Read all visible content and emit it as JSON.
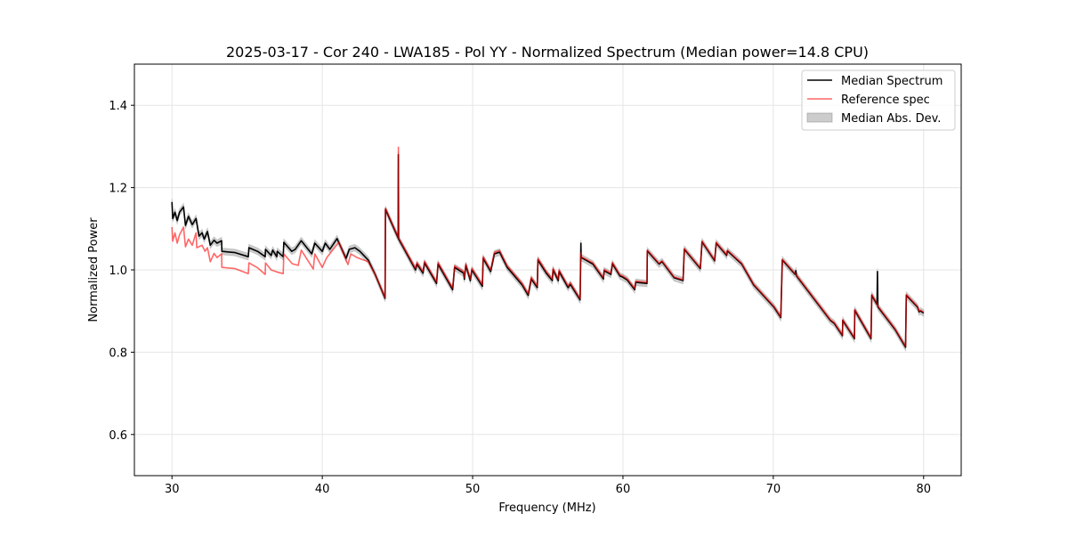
{
  "chart_data": {
    "type": "line",
    "title": "2025-03-17 - Cor 240 - LWA185 - Pol YY - Normalized Spectrum (Median power=14.8 CPU)",
    "xlabel": "Frequency (MHz)",
    "ylabel": "Normalized Power",
    "xlim": [
      27.5,
      82.5
    ],
    "ylim": [
      0.5,
      1.5
    ],
    "x_ticks": [
      30,
      40,
      50,
      60,
      70,
      80
    ],
    "y_ticks": [
      0.6,
      0.8,
      1.0,
      1.2,
      1.4
    ],
    "y_tick_labels": [
      "0.6",
      "0.8",
      "1.0",
      "1.2",
      "1.4"
    ],
    "grid": true,
    "legend_position": "top-right",
    "legend": [
      "Median Spectrum",
      "Reference spec",
      "Median Abs. Dev."
    ],
    "colors": {
      "median": "#000000",
      "reference": "#ff0000",
      "mad": "#999999"
    },
    "mad_halfwidth": 0.008,
    "series": [
      {
        "name": "Median Spectrum",
        "points": [
          [
            30.0,
            1.165
          ],
          [
            30.05,
            1.125
          ],
          [
            30.2,
            1.14
          ],
          [
            30.35,
            1.12
          ],
          [
            30.5,
            1.14
          ],
          [
            30.77,
            1.153
          ],
          [
            30.9,
            1.108
          ],
          [
            31.1,
            1.13
          ],
          [
            31.35,
            1.11
          ],
          [
            31.6,
            1.125
          ],
          [
            31.8,
            1.082
          ],
          [
            32.0,
            1.09
          ],
          [
            32.15,
            1.075
          ],
          [
            32.36,
            1.093
          ],
          [
            32.55,
            1.06
          ],
          [
            32.8,
            1.072
          ],
          [
            33.0,
            1.065
          ],
          [
            33.3,
            1.071
          ],
          [
            33.32,
            1.045
          ],
          [
            34.2,
            1.042
          ],
          [
            35.08,
            1.032
          ],
          [
            35.12,
            1.054
          ],
          [
            35.7,
            1.045
          ],
          [
            36.2,
            1.032
          ],
          [
            36.22,
            1.05
          ],
          [
            36.6,
            1.035
          ],
          [
            36.7,
            1.048
          ],
          [
            36.97,
            1.032
          ],
          [
            37.0,
            1.045
          ],
          [
            37.4,
            1.032
          ],
          [
            37.44,
            1.067
          ],
          [
            37.97,
            1.045
          ],
          [
            38.2,
            1.05
          ],
          [
            38.6,
            1.071
          ],
          [
            39.3,
            1.039
          ],
          [
            39.5,
            1.065
          ],
          [
            40.0,
            1.045
          ],
          [
            40.2,
            1.065
          ],
          [
            40.5,
            1.05
          ],
          [
            40.98,
            1.076
          ],
          [
            41.58,
            1.028
          ],
          [
            41.8,
            1.05
          ],
          [
            42.17,
            1.054
          ],
          [
            42.5,
            1.045
          ],
          [
            43.05,
            1.024
          ],
          [
            43.5,
            0.99
          ],
          [
            44.18,
            0.931
          ],
          [
            44.2,
            1.147
          ],
          [
            45.04,
            1.078
          ],
          [
            45.06,
            1.28
          ],
          [
            45.08,
            1.075
          ],
          [
            45.4,
            1.054
          ],
          [
            46.2,
            1.0
          ],
          [
            46.3,
            1.014
          ],
          [
            46.7,
            0.992
          ],
          [
            46.8,
            1.017
          ],
          [
            47.6,
            0.967
          ],
          [
            47.7,
            1.014
          ],
          [
            48.67,
            0.952
          ],
          [
            48.8,
            1.006
          ],
          [
            49.4,
            0.992
          ],
          [
            49.45,
            0.977
          ],
          [
            49.55,
            1.011
          ],
          [
            49.85,
            0.974
          ],
          [
            49.95,
            1.0
          ],
          [
            50.65,
            0.96
          ],
          [
            50.7,
            1.028
          ],
          [
            51.2,
            0.996
          ],
          [
            51.45,
            1.039
          ],
          [
            51.8,
            1.043
          ],
          [
            52.3,
            1.006
          ],
          [
            53.3,
            0.963
          ],
          [
            53.7,
            0.938
          ],
          [
            53.9,
            0.978
          ],
          [
            54.3,
            0.957
          ],
          [
            54.34,
            1.024
          ],
          [
            54.9,
            0.992
          ],
          [
            55.3,
            0.974
          ],
          [
            55.35,
            1.0
          ],
          [
            55.7,
            0.974
          ],
          [
            55.75,
            0.996
          ],
          [
            56.35,
            0.957
          ],
          [
            56.5,
            0.965
          ],
          [
            57.15,
            0.927
          ],
          [
            57.2,
            1.065
          ],
          [
            57.22,
            1.03
          ],
          [
            58.0,
            1.014
          ],
          [
            58.7,
            0.978
          ],
          [
            58.75,
            0.998
          ],
          [
            59.2,
            0.989
          ],
          [
            59.3,
            1.015
          ],
          [
            59.8,
            0.985
          ],
          [
            60.0,
            0.982
          ],
          [
            60.3,
            0.975
          ],
          [
            60.78,
            0.952
          ],
          [
            60.85,
            0.97
          ],
          [
            61.6,
            0.967
          ],
          [
            61.62,
            1.046
          ],
          [
            62.4,
            1.014
          ],
          [
            62.6,
            1.02
          ],
          [
            63.4,
            0.981
          ],
          [
            64.0,
            0.974
          ],
          [
            64.08,
            1.05
          ],
          [
            65.15,
            1.003
          ],
          [
            65.26,
            1.068
          ],
          [
            66.1,
            1.022
          ],
          [
            66.2,
            1.065
          ],
          [
            66.9,
            1.035
          ],
          [
            66.95,
            1.046
          ],
          [
            67.9,
            1.014
          ],
          [
            68.7,
            0.963
          ],
          [
            70.05,
            0.909
          ],
          [
            70.5,
            0.884
          ],
          [
            70.6,
            1.024
          ],
          [
            71.45,
            0.989
          ],
          [
            71.5,
            0.998
          ],
          [
            71.55,
            0.985
          ],
          [
            73.8,
            0.877
          ],
          [
            74.05,
            0.87
          ],
          [
            74.6,
            0.84
          ],
          [
            74.62,
            0.877
          ],
          [
            75.4,
            0.833
          ],
          [
            75.42,
            0.902
          ],
          [
            76.5,
            0.833
          ],
          [
            76.55,
            0.938
          ],
          [
            76.9,
            0.916
          ],
          [
            76.93,
            0.996
          ],
          [
            76.96,
            0.91
          ],
          [
            78.1,
            0.855
          ],
          [
            78.8,
            0.812
          ],
          [
            78.85,
            0.938
          ],
          [
            79.6,
            0.909
          ],
          [
            79.7,
            0.898
          ],
          [
            79.8,
            0.9
          ],
          [
            80.0,
            0.895
          ]
        ]
      },
      {
        "name": "Reference spec",
        "points": [
          [
            30.0,
            1.104
          ],
          [
            30.05,
            1.07
          ],
          [
            30.2,
            1.09
          ],
          [
            30.35,
            1.065
          ],
          [
            30.5,
            1.085
          ],
          [
            30.77,
            1.104
          ],
          [
            30.9,
            1.056
          ],
          [
            31.1,
            1.075
          ],
          [
            31.35,
            1.06
          ],
          [
            31.6,
            1.09
          ],
          [
            31.65,
            1.054
          ],
          [
            32.0,
            1.06
          ],
          [
            32.2,
            1.045
          ],
          [
            32.36,
            1.054
          ],
          [
            32.55,
            1.02
          ],
          [
            32.8,
            1.04
          ],
          [
            33.0,
            1.03
          ],
          [
            33.3,
            1.039
          ],
          [
            33.32,
            1.006
          ],
          [
            34.2,
            1.003
          ],
          [
            35.08,
            0.991
          ],
          [
            35.12,
            1.017
          ],
          [
            35.7,
            1.005
          ],
          [
            36.2,
            0.989
          ],
          [
            36.22,
            1.017
          ],
          [
            36.6,
            1.0
          ],
          [
            36.97,
            0.995
          ],
          [
            37.4,
            0.991
          ],
          [
            37.44,
            1.039
          ],
          [
            38.0,
            1.015
          ],
          [
            38.4,
            1.011
          ],
          [
            38.6,
            1.048
          ],
          [
            39.4,
            1.002
          ],
          [
            39.5,
            1.039
          ],
          [
            40.0,
            1.006
          ],
          [
            40.3,
            1.03
          ],
          [
            41.1,
            1.067
          ],
          [
            41.7,
            1.013
          ],
          [
            41.9,
            1.039
          ],
          [
            42.3,
            1.03
          ],
          [
            43.05,
            1.02
          ],
          [
            43.5,
            0.99
          ],
          [
            44.18,
            0.933
          ],
          [
            44.2,
            1.15
          ],
          [
            45.04,
            1.08
          ],
          [
            45.06,
            1.298
          ],
          [
            45.08,
            1.078
          ],
          [
            45.4,
            1.057
          ],
          [
            46.2,
            1.004
          ],
          [
            46.3,
            1.018
          ],
          [
            46.7,
            0.996
          ],
          [
            46.8,
            1.021
          ],
          [
            47.6,
            0.971
          ],
          [
            47.7,
            1.018
          ],
          [
            48.67,
            0.956
          ],
          [
            48.8,
            1.01
          ],
          [
            49.4,
            0.996
          ],
          [
            49.45,
            0.981
          ],
          [
            49.55,
            1.015
          ],
          [
            49.85,
            0.978
          ],
          [
            49.95,
            1.004
          ],
          [
            50.65,
            0.964
          ],
          [
            50.7,
            1.032
          ],
          [
            51.2,
            1.0
          ],
          [
            51.45,
            1.043
          ],
          [
            51.8,
            1.047
          ],
          [
            52.3,
            1.01
          ],
          [
            53.3,
            0.967
          ],
          [
            53.7,
            0.942
          ],
          [
            53.9,
            0.982
          ],
          [
            54.3,
            0.961
          ],
          [
            54.34,
            1.028
          ],
          [
            54.9,
            0.996
          ],
          [
            55.3,
            0.978
          ],
          [
            55.35,
            1.004
          ],
          [
            55.7,
            0.978
          ],
          [
            55.75,
            1.0
          ],
          [
            56.35,
            0.961
          ],
          [
            56.5,
            0.969
          ],
          [
            57.15,
            0.93
          ],
          [
            57.2,
            1.041
          ],
          [
            57.22,
            1.032
          ],
          [
            58.0,
            1.017
          ],
          [
            58.7,
            0.981
          ],
          [
            58.75,
            1.001
          ],
          [
            59.2,
            0.992
          ],
          [
            59.3,
            1.018
          ],
          [
            59.8,
            0.988
          ],
          [
            60.0,
            0.985
          ],
          [
            60.3,
            0.978
          ],
          [
            60.78,
            0.955
          ],
          [
            60.85,
            0.973
          ],
          [
            61.6,
            0.97
          ],
          [
            61.62,
            1.048
          ],
          [
            62.4,
            1.016
          ],
          [
            62.6,
            1.022
          ],
          [
            63.4,
            0.983
          ],
          [
            64.0,
            0.976
          ],
          [
            64.08,
            1.052
          ],
          [
            65.15,
            1.005
          ],
          [
            65.26,
            1.07
          ],
          [
            66.1,
            1.024
          ],
          [
            66.2,
            1.067
          ],
          [
            66.9,
            1.037
          ],
          [
            66.95,
            1.048
          ],
          [
            67.9,
            1.016
          ],
          [
            68.7,
            0.965
          ],
          [
            70.05,
            0.911
          ],
          [
            70.5,
            0.886
          ],
          [
            70.6,
            1.026
          ],
          [
            71.45,
            0.991
          ],
          [
            71.55,
            0.987
          ],
          [
            73.8,
            0.879
          ],
          [
            74.05,
            0.872
          ],
          [
            74.6,
            0.842
          ],
          [
            74.62,
            0.879
          ],
          [
            75.4,
            0.835
          ],
          [
            75.42,
            0.904
          ],
          [
            76.5,
            0.835
          ],
          [
            76.55,
            0.94
          ],
          [
            76.9,
            0.918
          ],
          [
            76.96,
            0.912
          ],
          [
            78.1,
            0.857
          ],
          [
            78.8,
            0.814
          ],
          [
            78.85,
            0.94
          ],
          [
            79.6,
            0.911
          ],
          [
            79.7,
            0.9
          ],
          [
            79.8,
            0.902
          ],
          [
            80.0,
            0.897
          ]
        ]
      }
    ]
  }
}
